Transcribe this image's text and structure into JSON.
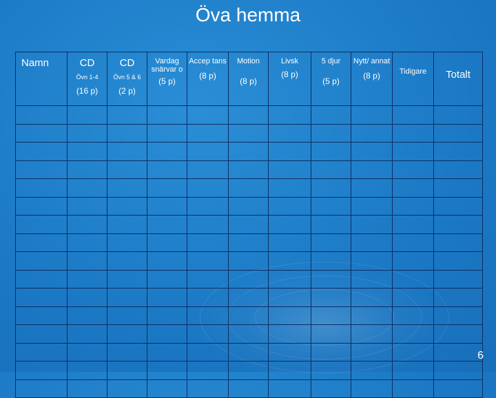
{
  "slide": {
    "title": "Öva hemma",
    "page_number": "6"
  },
  "table": {
    "headers": [
      {
        "main": "Namn"
      },
      {
        "main": "CD",
        "sub": "Övn 1-4",
        "points": "(16 p)"
      },
      {
        "main": "CD",
        "sub": "Övn 5 & 6",
        "points": "(2 p)"
      },
      {
        "main": "Vardag snärvar o",
        "points": "(5 p)"
      },
      {
        "main": "Accep tans",
        "points": "(8 p)"
      },
      {
        "main": "Motion",
        "points": "(8 p)"
      },
      {
        "main": "Livsk",
        "points": "(8 p)"
      },
      {
        "main": "5 djur",
        "points": "(5 p)"
      },
      {
        "main": "Nytt/ annat",
        "points": "(8 p)"
      },
      {
        "main": "Tidigare"
      },
      {
        "main": "Totalt"
      }
    ],
    "empty_row_count": 16
  }
}
